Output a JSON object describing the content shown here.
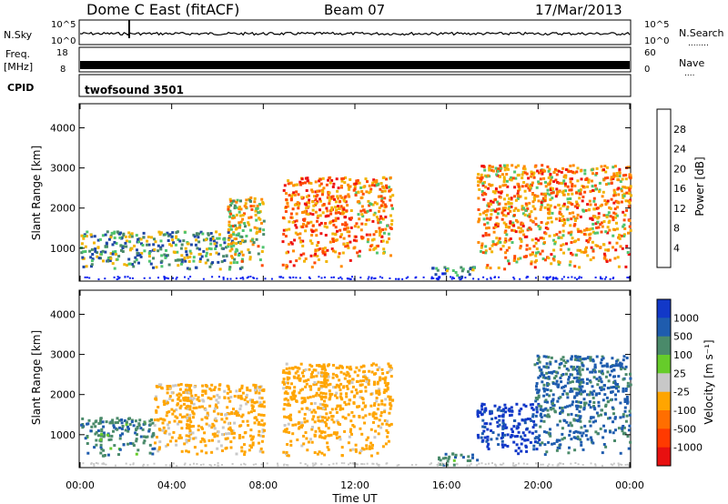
{
  "header": {
    "station": "Dome C East (fitACF)",
    "beam": "Beam 07",
    "date": "17/Mar/2013"
  },
  "nsky_panel": {
    "left_label": "N.Sky",
    "right_label": "N.Search",
    "right_dots": "........",
    "y_ticks": [
      "10^5",
      "10^0"
    ]
  },
  "freq_panel": {
    "left_label_1": "Freq.",
    "left_label_2": "[MHz]",
    "left_ticks": [
      "18",
      "8"
    ],
    "right_label": "Nave",
    "right_dots": "....",
    "right_ticks": [
      "60",
      "0"
    ]
  },
  "cpid_panel": {
    "label": "CPID",
    "program": "twofsound 3501"
  },
  "colors": {
    "power_scale": [
      "#0a1ff0",
      "#1f47a6",
      "#4a8a6a",
      "#4fc46f",
      "#f2b400",
      "#ff8a00",
      "#ff4a00",
      "#ee1111"
    ],
    "velocity_scale": [
      "#1238c8",
      "#1f5cae",
      "#4a8a6a",
      "#66cc2a",
      "#c8c8c8",
      "#ffa500",
      "#ff6e00",
      "#ff3a00",
      "#e81010"
    ]
  },
  "chart_data": [
    {
      "type": "heatmap",
      "title": "",
      "xlabel": "Time UT",
      "ylabel": "Slant Range [km]",
      "x_ticks": [
        "00:00",
        "04:00",
        "08:00",
        "12:00",
        "16:00",
        "20:00",
        "00:00"
      ],
      "x_range_hours": [
        0,
        24
      ],
      "y_ticks": [
        1000,
        2000,
        3000,
        4000
      ],
      "ylim": [
        180,
        4600
      ],
      "colorbar": {
        "label": "Power [dB]",
        "ticks": [
          4,
          8,
          12,
          16,
          20,
          24,
          28
        ],
        "range": [
          0,
          32
        ]
      },
      "regions": [
        {
          "t0": 0.0,
          "t1": 7.1,
          "r0": 500,
          "r1": 1450,
          "value": 12
        },
        {
          "t0": 6.4,
          "t1": 8.0,
          "r0": 600,
          "r1": 2300,
          "value": 18
        },
        {
          "t0": 8.8,
          "t1": 11.8,
          "r0": 500,
          "r1": 2800,
          "value": 24
        },
        {
          "t0": 11.9,
          "t1": 13.6,
          "r0": 700,
          "r1": 2800,
          "value": 22
        },
        {
          "t0": 15.3,
          "t1": 17.3,
          "r0": 250,
          "r1": 560,
          "value": 10
        },
        {
          "t0": 17.3,
          "t1": 24.0,
          "r0": 500,
          "r1": 3100,
          "value": 22
        }
      ]
    },
    {
      "type": "heatmap",
      "title": "",
      "xlabel": "Time UT",
      "ylabel": "Slant Range [km]",
      "x_ticks": [
        "00:00",
        "04:00",
        "08:00",
        "12:00",
        "16:00",
        "20:00",
        "00:00"
      ],
      "x_range_hours": [
        0,
        24
      ],
      "y_ticks": [
        1000,
        2000,
        3000,
        4000
      ],
      "ylim": [
        180,
        4600
      ],
      "colorbar": {
        "label": "Velocity [m s⁻¹]",
        "ticks": [
          "1000",
          "500",
          "100",
          "25",
          "-25",
          "-100",
          "-500",
          "-1000"
        ]
      },
      "regions": [
        {
          "t0": 0.0,
          "t1": 3.2,
          "r0": 500,
          "r1": 1450,
          "value": 80
        },
        {
          "t0": 3.2,
          "t1": 8.0,
          "r0": 500,
          "r1": 2300,
          "value": -150
        },
        {
          "t0": 8.8,
          "t1": 13.6,
          "r0": 500,
          "r1": 2800,
          "value": -200
        },
        {
          "t0": 15.5,
          "t1": 17.3,
          "r0": 250,
          "r1": 560,
          "value": 70
        },
        {
          "t0": 17.3,
          "t1": 20.0,
          "r0": 550,
          "r1": 1800,
          "value": 700
        },
        {
          "t0": 19.8,
          "t1": 24.0,
          "r0": 500,
          "r1": 3000,
          "value": 120
        }
      ]
    }
  ]
}
